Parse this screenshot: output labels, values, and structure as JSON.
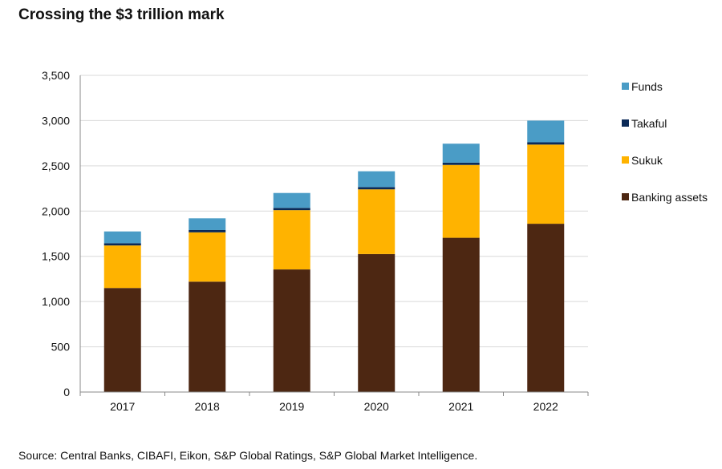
{
  "title": "Crossing the $3 trillion mark",
  "source": "Source: Central Banks, CIBAFI, Eikon, S&P Global Ratings, S&P Global Market Intelligence.",
  "chart_data": {
    "type": "bar",
    "stacked": true,
    "title": "Crossing the $3 trillion mark",
    "xlabel": "",
    "ylabel": "",
    "categories": [
      "2017",
      "2018",
      "2019",
      "2020",
      "2021",
      "2022"
    ],
    "ylim": [
      0,
      3500
    ],
    "yticks": [
      0,
      500,
      1000,
      1500,
      2000,
      2500,
      3000,
      3500
    ],
    "ytick_labels": [
      "0",
      "500",
      "1,000",
      "1,500",
      "2,000",
      "2,500",
      "3,000",
      "3,500"
    ],
    "grid": true,
    "legend_position": "right",
    "series": [
      {
        "name": "Banking assets",
        "color": "#4d2712",
        "values": [
          1150,
          1220,
          1355,
          1525,
          1705,
          1860
        ]
      },
      {
        "name": "Sukuk",
        "color": "#ffb300",
        "values": [
          470,
          545,
          655,
          715,
          805,
          875
        ]
      },
      {
        "name": "Takaful",
        "color": "#0b2a57",
        "values": [
          25,
          25,
          25,
          25,
          25,
          25
        ]
      },
      {
        "name": "Funds",
        "color": "#4a9cc6",
        "values": [
          130,
          130,
          165,
          175,
          210,
          240
        ]
      }
    ],
    "legend_order": [
      "Funds",
      "Takaful",
      "Sukuk",
      "Banking assets"
    ]
  }
}
